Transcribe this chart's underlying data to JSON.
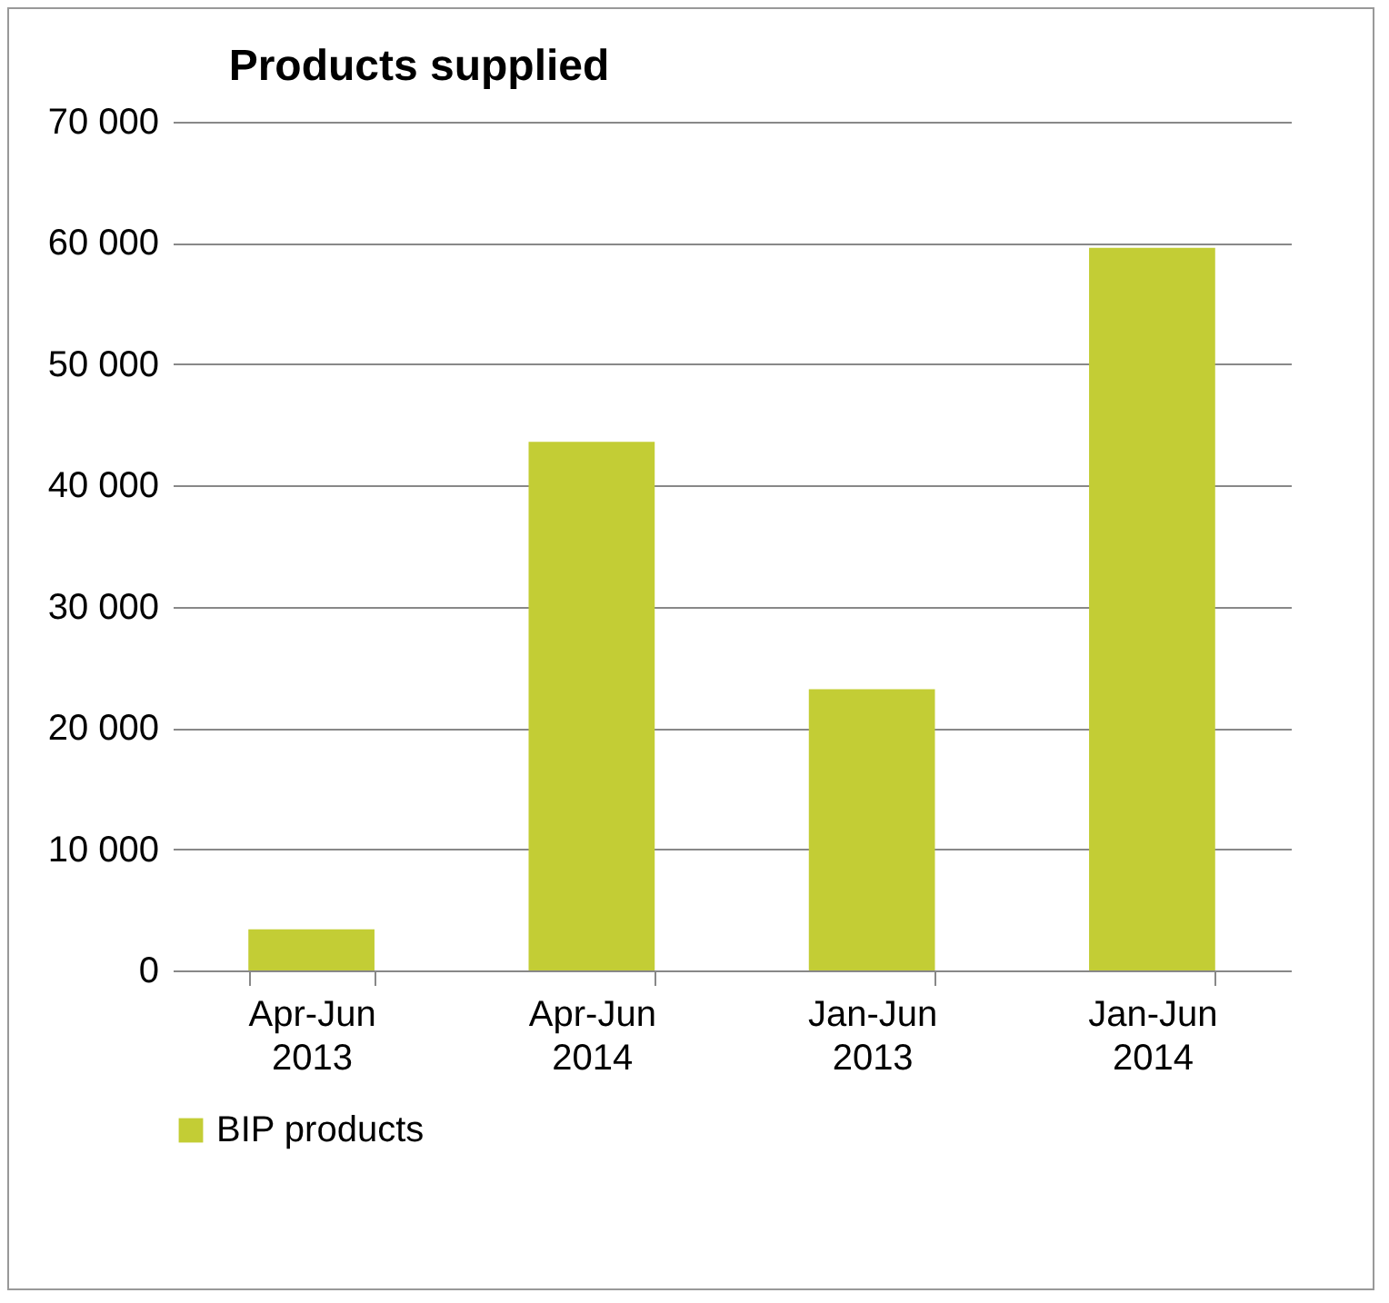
{
  "chart_data": {
    "type": "bar",
    "title": "Products supplied",
    "categories": [
      "Apr-Jun 2013",
      "Apr-Jun 2014",
      "Jan-Jun 2013",
      "Jan-Jun 2014"
    ],
    "series": [
      {
        "name": "BIP products",
        "color": "#c3cd35",
        "values": [
          3400,
          43600,
          23200,
          59600
        ]
      }
    ],
    "ylim": [
      0,
      70000
    ],
    "yticks": [
      0,
      {
        "value": 10000,
        "label": "10 000"
      },
      {
        "value": 20000,
        "label": "20 000"
      },
      {
        "value": 30000,
        "label": "30 000"
      },
      {
        "value": 40000,
        "label": "40 000"
      },
      {
        "value": 50000,
        "label": "50 000"
      },
      {
        "value": 60000,
        "label": "60 000"
      },
      {
        "value": 70000,
        "label": "70 000"
      }
    ],
    "grid": "y",
    "legend": "bottom"
  }
}
